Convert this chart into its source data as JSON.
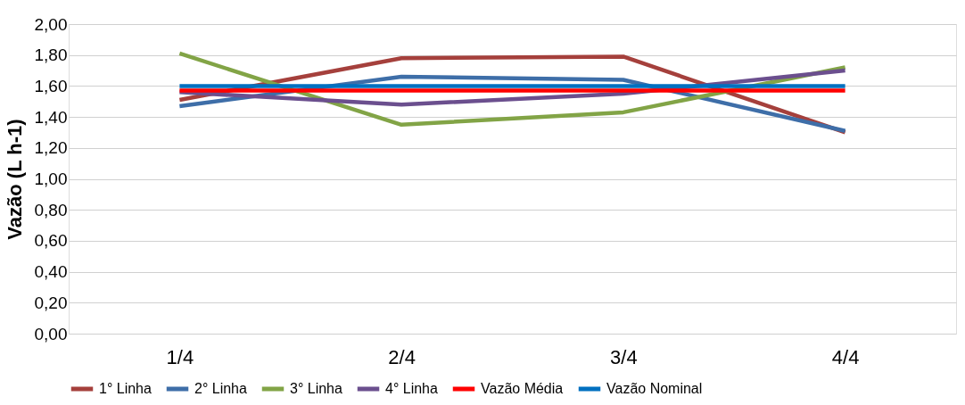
{
  "chart_data": {
    "type": "line",
    "ylabel": "Vazão (L h-1)",
    "categories": [
      "1/4",
      "2/4",
      "3/4",
      "4/4"
    ],
    "series": [
      {
        "name": "1° Linha",
        "color": "#a5403c",
        "values": [
          1.51,
          1.78,
          1.79,
          1.3
        ]
      },
      {
        "name": "2° Linha",
        "color": "#3e6ea8",
        "values": [
          1.47,
          1.66,
          1.64,
          1.31
        ]
      },
      {
        "name": "3° Linha",
        "color": "#82a446",
        "values": [
          1.81,
          1.35,
          1.43,
          1.72
        ]
      },
      {
        "name": "4° Linha",
        "color": "#6b4f8e",
        "values": [
          1.56,
          1.48,
          1.55,
          1.7
        ]
      },
      {
        "name": "Vazão Média",
        "color": "#ff0000",
        "values": [
          1.57,
          1.57,
          1.57,
          1.57
        ]
      },
      {
        "name": "Vazão Nominal",
        "color": "#0070c0",
        "values": [
          1.6,
          1.6,
          1.6,
          1.6
        ]
      }
    ],
    "ylim": [
      0,
      2
    ],
    "yticks": [
      {
        "value": 0,
        "label": "0,00"
      },
      {
        "value": 0.2,
        "label": "0,20"
      },
      {
        "value": 0.4,
        "label": "0,40"
      },
      {
        "value": 0.6,
        "label": "0,60"
      },
      {
        "value": 0.8,
        "label": "0,80"
      },
      {
        "value": 1,
        "label": "1,00"
      },
      {
        "value": 1.2,
        "label": "1,20"
      },
      {
        "value": 1.4,
        "label": "1,40"
      },
      {
        "value": 1.6,
        "label": "1,60"
      },
      {
        "value": 1.8,
        "label": "1,80"
      },
      {
        "value": 2,
        "label": "2,00"
      }
    ],
    "grid": "y",
    "legend": "bottom",
    "marker": "none",
    "line_style": "solid"
  }
}
